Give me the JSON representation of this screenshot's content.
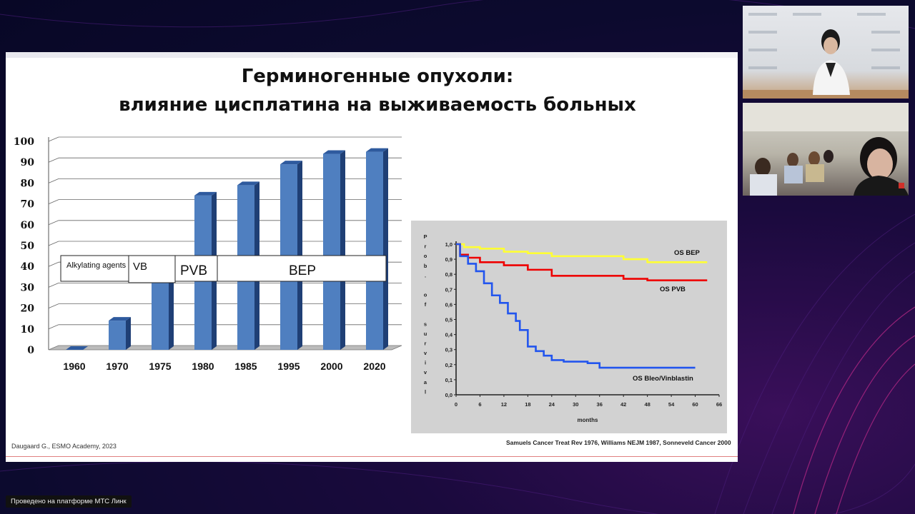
{
  "slide": {
    "title_line1": "Герминогенные опухоли:",
    "title_line2": "влияние цисплатина на выживаемость больных",
    "citation_left": "Daugaard G., ESMO Academy, 2023",
    "citation_right": "Samuels Cancer Treat Rev 1976, Williams NEJM 1987, Sonneveld Cancer 2000"
  },
  "regimen_labels": [
    "Alkylating agents",
    "VB",
    "PVB",
    "BEP"
  ],
  "platform_label": "Проведено на платформе МТС Линк",
  "colors": {
    "bar": "#4f7fc0",
    "os_bep": "#ffff33",
    "os_pvb": "#ee0000",
    "os_bleo": "#2255ee",
    "km_background": "#d2d2d2"
  },
  "chart_data": [
    {
      "type": "bar",
      "categories": [
        "1960",
        "1970",
        "1975",
        "1980",
        "1985",
        "1995",
        "2000",
        "2020"
      ],
      "values": [
        0,
        14,
        35,
        74,
        79,
        89,
        94,
        95
      ],
      "ylim": [
        0,
        100
      ],
      "yticks": [
        "0",
        "10",
        "20",
        "30",
        "40",
        "50",
        "60",
        "70",
        "80",
        "90",
        "100"
      ],
      "grid": true,
      "style": "3d"
    },
    {
      "type": "line",
      "ylabel": "Prob. of survival",
      "xlabel": "months",
      "xticks": [
        "0",
        "6",
        "12",
        "18",
        "24",
        "30",
        "36",
        "42",
        "48",
        "54",
        "60",
        "66"
      ],
      "yticks": [
        "0,0",
        "0,1",
        "0,2",
        "0,3",
        "0,4",
        "0,5",
        "0,6",
        "0,7",
        "0,8",
        "0,9",
        "1,0"
      ],
      "xlim": [
        0,
        66
      ],
      "ylim": [
        0,
        1
      ],
      "series": [
        {
          "name": "OS BEP",
          "x": [
            0,
            2,
            6,
            12,
            18,
            24,
            30,
            36,
            42,
            48,
            54,
            60,
            63
          ],
          "y": [
            1.0,
            0.98,
            0.97,
            0.95,
            0.94,
            0.92,
            0.92,
            0.92,
            0.9,
            0.88,
            0.88,
            0.88,
            0.88
          ]
        },
        {
          "name": "OS PVB",
          "x": [
            0,
            1,
            3,
            6,
            12,
            18,
            24,
            30,
            36,
            42,
            48,
            54,
            60,
            63
          ],
          "y": [
            1.0,
            0.93,
            0.91,
            0.88,
            0.86,
            0.83,
            0.79,
            0.79,
            0.79,
            0.77,
            0.76,
            0.76,
            0.76,
            0.76
          ]
        },
        {
          "name": "OS Bleo/Vinblastin",
          "x": [
            0,
            1,
            3,
            5,
            7,
            9,
            11,
            13,
            15,
            16,
            18,
            20,
            22,
            24,
            27,
            30,
            33,
            36,
            42,
            48,
            54,
            60
          ],
          "y": [
            1.0,
            0.92,
            0.87,
            0.82,
            0.74,
            0.66,
            0.61,
            0.54,
            0.49,
            0.43,
            0.32,
            0.29,
            0.26,
            0.23,
            0.22,
            0.22,
            0.21,
            0.18,
            0.18,
            0.18,
            0.18,
            0.18
          ]
        }
      ]
    }
  ]
}
